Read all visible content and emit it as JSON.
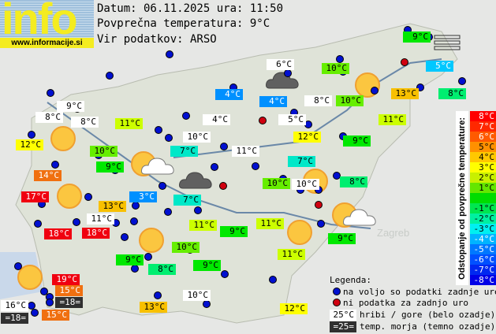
{
  "logo": {
    "text": "info",
    "url": "www.informacije.si"
  },
  "header": {
    "date_line": "Datum: 06.11.2025 ura: 11:50",
    "avg_line": "Povprečna temperatura: 9°C",
    "source_line": "Vir podatkov: ARSO"
  },
  "colors": {
    "red": "#f00010",
    "orange": "#f07010",
    "amber": "#f8c000",
    "yellow": "#ffff00",
    "lime": "#ccff00",
    "green10": "#66ee00",
    "green9": "#00e800",
    "green8": "#00ee70",
    "cyan": "#00e8c8",
    "sky": "#00c8ff",
    "blue": "#0090ff",
    "white": "#ffffff",
    "dark": "#303030"
  },
  "stations": [
    {
      "t": "9°C",
      "c": "white"
    },
    {
      "t": "8°C",
      "c": "white"
    },
    {
      "t": "8°C",
      "c": "white"
    },
    {
      "t": "11°C",
      "c": "lime"
    },
    {
      "t": "12°C",
      "c": "yellow"
    },
    {
      "t": "10°C",
      "c": "green10"
    },
    {
      "t": "9°C",
      "c": "green9"
    },
    {
      "t": "14°C",
      "c": "orange"
    },
    {
      "t": "17°C",
      "c": "red"
    },
    {
      "t": "13°C",
      "c": "amber"
    },
    {
      "t": "3°C",
      "c": "blue"
    },
    {
      "t": "11°C",
      "c": "white"
    },
    {
      "t": "18°C",
      "c": "red"
    },
    {
      "t": "18°C",
      "c": "red"
    },
    {
      "t": "6°C",
      "c": "white"
    },
    {
      "t": "4°C",
      "c": "blue"
    },
    {
      "t": "4°C",
      "c": "blue"
    },
    {
      "t": "8°C",
      "c": "white"
    },
    {
      "t": "4°C",
      "c": "white"
    },
    {
      "t": "5°C",
      "c": "white"
    },
    {
      "t": "12°C",
      "c": "yellow"
    },
    {
      "t": "10°C",
      "c": "white"
    },
    {
      "t": "7°C",
      "c": "cyan"
    },
    {
      "t": "11°C",
      "c": "white"
    },
    {
      "t": "7°C",
      "c": "cyan"
    },
    {
      "t": "10°C",
      "c": "green10"
    },
    {
      "t": "10°C",
      "c": "white"
    },
    {
      "t": "7°C",
      "c": "cyan"
    },
    {
      "t": "9°C",
      "c": "green9"
    },
    {
      "t": "10°C",
      "c": "green10"
    },
    {
      "t": "5°C",
      "c": "sky"
    },
    {
      "t": "10°C",
      "c": "green10"
    },
    {
      "t": "13°C",
      "c": "amber"
    },
    {
      "t": "8°C",
      "c": "green8"
    },
    {
      "t": "11°C",
      "c": "lime"
    },
    {
      "t": "9°C",
      "c": "green9"
    },
    {
      "t": "8°C",
      "c": "green8"
    },
    {
      "t": "11°C",
      "c": "lime"
    },
    {
      "t": "9°C",
      "c": "green9"
    },
    {
      "t": "11°C",
      "c": "lime"
    },
    {
      "t": "9°C",
      "c": "green9"
    },
    {
      "t": "10°C",
      "c": "green10"
    },
    {
      "t": "11°C",
      "c": "lime"
    },
    {
      "t": "9°C",
      "c": "green9"
    },
    {
      "t": "8°C",
      "c": "green8"
    },
    {
      "t": "9°C",
      "c": "green9"
    },
    {
      "t": "10°C",
      "c": "white"
    },
    {
      "t": "12°C",
      "c": "yellow"
    },
    {
      "t": "19°C",
      "c": "red"
    },
    {
      "t": "15°C",
      "c": "orange"
    },
    {
      "t": "=18=",
      "c": "dark"
    },
    {
      "t": "16°C",
      "c": "white"
    },
    {
      "t": "=18=",
      "c": "dark"
    },
    {
      "t": "15°C",
      "c": "orange"
    },
    {
      "t": "13°C",
      "c": "amber"
    }
  ],
  "scale": {
    "title": "Odstopanje od povprečne temperature:",
    "steps": [
      {
        "t": "8°C",
        "c": "#ff0000"
      },
      {
        "t": "7°C",
        "c": "#ff2800"
      },
      {
        "t": "6°C",
        "c": "#ff5a00"
      },
      {
        "t": "5°C",
        "c": "#ff9000"
      },
      {
        "t": "4°C",
        "c": "#ffc800"
      },
      {
        "t": "3°C",
        "c": "#ffff00"
      },
      {
        "t": "2°C",
        "c": "#c8f000"
      },
      {
        "t": "1°C",
        "c": "#64e600"
      },
      {
        "t": "",
        "c": "#00dc00"
      },
      {
        "t": "-1°C",
        "c": "#00e650"
      },
      {
        "t": "-2°C",
        "c": "#00f0a0"
      },
      {
        "t": "-3°C",
        "c": "#00f0f0"
      },
      {
        "t": "-4°C",
        "c": "#00b4ff"
      },
      {
        "t": "-5°C",
        "c": "#0078ff"
      },
      {
        "t": "-6°C",
        "c": "#0050ff"
      },
      {
        "t": "-7°C",
        "c": "#0028f0"
      },
      {
        "t": "-8°C",
        "c": "#0000e6"
      }
    ]
  },
  "legend": {
    "title": "Legenda:",
    "blue_dot": "na voljo so podatki zadnje ure",
    "red_dot": "ni podatka za zadnjo uro",
    "mountain_sample": "25°C",
    "mountain_text": "hribi / gore (belo ozadje)",
    "sea_sample": "=25=",
    "sea_text": "temp. morja (temno ozadje)"
  },
  "map_labels": {
    "city_zagreb": "Zagreb"
  }
}
